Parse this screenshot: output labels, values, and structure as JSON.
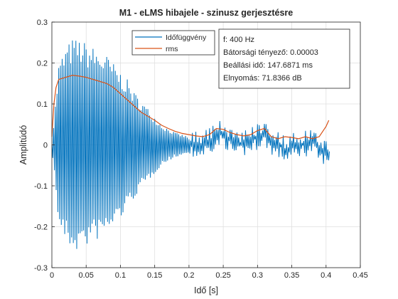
{
  "chart_data": {
    "type": "line",
    "title": "M1 - eLMS hibajele - szinusz gerjesztésre",
    "xlabel": "Idő [s]",
    "ylabel": "Amplitúdó",
    "xlim": [
      0,
      0.45
    ],
    "ylim": [
      -0.3,
      0.3
    ],
    "x_ticks": [
      "0",
      "0.05",
      "0.1",
      "0.15",
      "0.2",
      "0.25",
      "0.3",
      "0.35",
      "0.4",
      "0.45"
    ],
    "y_ticks": [
      "0.3",
      "0.2",
      "0.1",
      "0",
      "-0.1",
      "-0.2",
      "-0.3"
    ],
    "grid": true,
    "legend_position": "top-center",
    "series": [
      {
        "name": "Időfüggvény",
        "color": "#0072BD",
        "style": "oscillating",
        "envelope_x": [
          0.0,
          0.005,
          0.01,
          0.02,
          0.03,
          0.04,
          0.05,
          0.06,
          0.07,
          0.08,
          0.09,
          0.1,
          0.11,
          0.12,
          0.13,
          0.14,
          0.15,
          0.16,
          0.17,
          0.18,
          0.19,
          0.2,
          0.21
        ],
        "envelope_upper": [
          0.0,
          0.1,
          0.2,
          0.24,
          0.26,
          0.26,
          0.25,
          0.24,
          0.23,
          0.22,
          0.2,
          0.18,
          0.16,
          0.13,
          0.11,
          0.09,
          0.07,
          0.05,
          0.04,
          0.03,
          0.025,
          0.02,
          0.02
        ],
        "envelope_lower": [
          -0.01,
          -0.1,
          -0.2,
          -0.24,
          -0.26,
          -0.26,
          -0.25,
          -0.24,
          -0.23,
          -0.22,
          -0.2,
          -0.18,
          -0.16,
          -0.13,
          -0.11,
          -0.09,
          -0.07,
          -0.05,
          -0.04,
          -0.03,
          -0.025,
          -0.02,
          -0.02
        ],
        "baseline_x": [
          0.0,
          0.05,
          0.1,
          0.15,
          0.2,
          0.22,
          0.24,
          0.25,
          0.26,
          0.27,
          0.28,
          0.3,
          0.31,
          0.32,
          0.33,
          0.34,
          0.36,
          0.38,
          0.39,
          0.4,
          0.405
        ],
        "baseline_y": [
          0.0,
          0.0,
          0.0,
          0.0,
          0.0,
          0.0,
          0.02,
          0.03,
          0.01,
          0.0,
          0.005,
          0.02,
          0.03,
          0.01,
          0.0,
          -0.01,
          0.0,
          0.01,
          -0.01,
          -0.02,
          -0.03
        ]
      },
      {
        "name": "rms",
        "color": "#D95319",
        "x": [
          0.0,
          0.003,
          0.006,
          0.01,
          0.02,
          0.03,
          0.04,
          0.05,
          0.06,
          0.07,
          0.08,
          0.09,
          0.1,
          0.11,
          0.12,
          0.13,
          0.14,
          0.15,
          0.16,
          0.17,
          0.18,
          0.19,
          0.2,
          0.21,
          0.22,
          0.23,
          0.24,
          0.25,
          0.26,
          0.27,
          0.28,
          0.29,
          0.3,
          0.31,
          0.32,
          0.33,
          0.34,
          0.35,
          0.36,
          0.37,
          0.38,
          0.39,
          0.4,
          0.404
        ],
        "y": [
          0.02,
          0.1,
          0.14,
          0.16,
          0.165,
          0.17,
          0.168,
          0.165,
          0.16,
          0.155,
          0.15,
          0.14,
          0.125,
          0.11,
          0.095,
          0.08,
          0.07,
          0.06,
          0.048,
          0.04,
          0.033,
          0.028,
          0.025,
          0.022,
          0.02,
          0.025,
          0.04,
          0.038,
          0.03,
          0.025,
          0.022,
          0.025,
          0.035,
          0.04,
          0.02,
          0.015,
          0.02,
          0.018,
          0.015,
          0.02,
          0.015,
          0.02,
          0.045,
          0.06
        ]
      }
    ],
    "info_box": [
      "f: 400 Hz",
      "Bátorsági tényező: 0.00003",
      "Beállási idő: 147.6871 ms",
      "Elnyomás: 71.8366 dB"
    ]
  }
}
